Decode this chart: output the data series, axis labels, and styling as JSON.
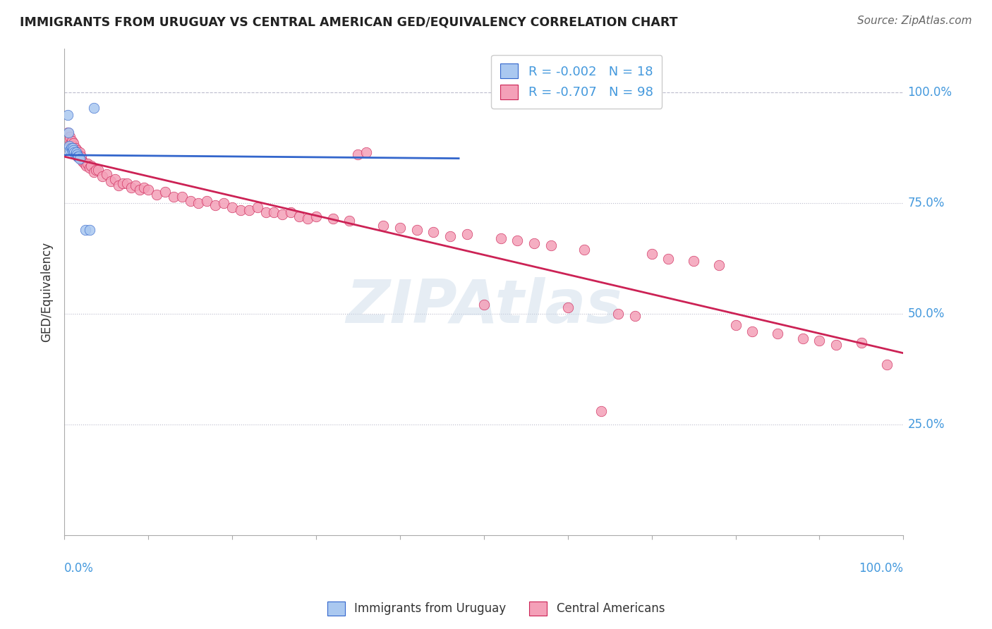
{
  "title": "IMMIGRANTS FROM URUGUAY VS CENTRAL AMERICAN GED/EQUIVALENCY CORRELATION CHART",
  "source": "Source: ZipAtlas.com",
  "ylabel": "GED/Equivalency",
  "watermark": "ZIPAtlas",
  "uruguay_color": "#aac8f0",
  "central_color": "#f4a0b8",
  "trendline_uruguay_color": "#3366cc",
  "trendline_central_color": "#cc2255",
  "grid_color": "#bbbbcc",
  "background_color": "#ffffff",
  "tick_color": "#4499dd",
  "uruguay_points": [
    [
      0.4,
      95.0
    ],
    [
      0.5,
      91.0
    ],
    [
      0.6,
      88.0
    ],
    [
      0.7,
      87.0
    ],
    [
      0.8,
      87.5
    ],
    [
      0.9,
      87.0
    ],
    [
      1.0,
      87.5
    ],
    [
      1.1,
      87.0
    ],
    [
      1.2,
      86.5
    ],
    [
      1.3,
      86.0
    ],
    [
      1.4,
      86.5
    ],
    [
      1.5,
      86.0
    ],
    [
      1.6,
      85.5
    ],
    [
      1.7,
      85.5
    ],
    [
      1.8,
      85.0
    ],
    [
      2.5,
      69.0
    ],
    [
      3.0,
      69.0
    ],
    [
      3.5,
      96.5
    ]
  ],
  "central_points": [
    [
      0.3,
      90.0
    ],
    [
      0.4,
      91.0
    ],
    [
      0.5,
      89.0
    ],
    [
      0.6,
      89.5
    ],
    [
      0.7,
      90.0
    ],
    [
      0.8,
      88.5
    ],
    [
      0.9,
      89.0
    ],
    [
      1.0,
      88.0
    ],
    [
      1.1,
      88.5
    ],
    [
      1.2,
      87.0
    ],
    [
      1.3,
      87.5
    ],
    [
      1.4,
      86.5
    ],
    [
      1.5,
      87.0
    ],
    [
      1.6,
      85.5
    ],
    [
      1.7,
      86.0
    ],
    [
      1.8,
      86.5
    ],
    [
      1.9,
      85.0
    ],
    [
      2.0,
      85.5
    ],
    [
      2.2,
      84.5
    ],
    [
      2.4,
      84.0
    ],
    [
      2.6,
      83.5
    ],
    [
      2.8,
      84.0
    ],
    [
      3.0,
      83.0
    ],
    [
      3.2,
      83.5
    ],
    [
      3.5,
      82.0
    ],
    [
      3.8,
      82.5
    ],
    [
      4.0,
      82.5
    ],
    [
      4.5,
      81.0
    ],
    [
      5.0,
      81.5
    ],
    [
      5.5,
      80.0
    ],
    [
      6.0,
      80.5
    ],
    [
      6.5,
      79.0
    ],
    [
      7.0,
      79.5
    ],
    [
      7.5,
      79.5
    ],
    [
      8.0,
      78.5
    ],
    [
      8.5,
      79.0
    ],
    [
      9.0,
      78.0
    ],
    [
      9.5,
      78.5
    ],
    [
      10.0,
      78.0
    ],
    [
      11.0,
      77.0
    ],
    [
      12.0,
      77.5
    ],
    [
      13.0,
      76.5
    ],
    [
      14.0,
      76.5
    ],
    [
      15.0,
      75.5
    ],
    [
      16.0,
      75.0
    ],
    [
      17.0,
      75.5
    ],
    [
      18.0,
      74.5
    ],
    [
      19.0,
      75.0
    ],
    [
      20.0,
      74.0
    ],
    [
      21.0,
      73.5
    ],
    [
      22.0,
      73.5
    ],
    [
      23.0,
      74.0
    ],
    [
      24.0,
      73.0
    ],
    [
      25.0,
      73.0
    ],
    [
      26.0,
      72.5
    ],
    [
      27.0,
      73.0
    ],
    [
      28.0,
      72.0
    ],
    [
      29.0,
      71.5
    ],
    [
      30.0,
      72.0
    ],
    [
      32.0,
      71.5
    ],
    [
      34.0,
      71.0
    ],
    [
      35.0,
      86.0
    ],
    [
      36.0,
      86.5
    ],
    [
      38.0,
      70.0
    ],
    [
      40.0,
      69.5
    ],
    [
      42.0,
      69.0
    ],
    [
      44.0,
      68.5
    ],
    [
      46.0,
      67.5
    ],
    [
      48.0,
      68.0
    ],
    [
      50.0,
      52.0
    ],
    [
      52.0,
      67.0
    ],
    [
      54.0,
      66.5
    ],
    [
      56.0,
      66.0
    ],
    [
      58.0,
      65.5
    ],
    [
      60.0,
      51.5
    ],
    [
      62.0,
      64.5
    ],
    [
      64.0,
      28.0
    ],
    [
      66.0,
      50.0
    ],
    [
      68.0,
      49.5
    ],
    [
      70.0,
      63.5
    ],
    [
      72.0,
      62.5
    ],
    [
      75.0,
      62.0
    ],
    [
      78.0,
      61.0
    ],
    [
      80.0,
      47.5
    ],
    [
      82.0,
      46.0
    ],
    [
      85.0,
      45.5
    ],
    [
      88.0,
      44.5
    ],
    [
      90.0,
      44.0
    ],
    [
      92.0,
      43.0
    ],
    [
      95.0,
      43.5
    ],
    [
      98.0,
      38.5
    ]
  ],
  "xlim": [
    0.0,
    100.0
  ],
  "ylim": [
    0.0,
    110.0
  ],
  "ytick_positions": [
    0.0,
    25.0,
    50.0,
    75.0,
    100.0
  ],
  "ytick_labels": [
    "",
    "25.0%",
    "50.0%",
    "75.0%",
    "100.0%"
  ],
  "hlines_dotted": [
    75.0,
    50.0,
    25.0
  ],
  "hline_dashed": 100.0,
  "xtick_positions": [
    0,
    10,
    20,
    30,
    40,
    50,
    60,
    70,
    80,
    90,
    100
  ]
}
